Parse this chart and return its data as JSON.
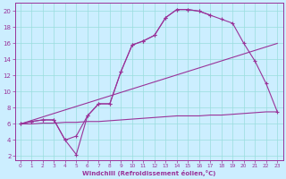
{
  "xlabel": "Windchill (Refroidissement éolien,°C)",
  "bg_color": "#cceeff",
  "line_color": "#993399",
  "series": [
    {
      "x": [
        0,
        1,
        2,
        3,
        4,
        5,
        6,
        7,
        8,
        9,
        10,
        11,
        12,
        13,
        14,
        15,
        16,
        17
      ],
      "y": [
        6,
        6.3,
        6.5,
        6.5,
        4.0,
        4.5,
        7.0,
        8.5,
        8.5,
        12.5,
        15.8,
        16.3,
        17.0,
        19.2,
        20.2,
        20.2,
        20.0,
        19.5
      ],
      "has_marker": true
    },
    {
      "x": [
        0,
        1,
        2,
        3,
        4,
        5,
        6,
        7,
        8,
        9,
        10,
        11,
        12,
        13,
        14,
        15,
        16,
        17,
        18,
        19,
        20,
        21,
        22,
        23
      ],
      "y": [
        6,
        6.3,
        6.5,
        6.5,
        4.0,
        2.2,
        7.0,
        8.5,
        8.5,
        12.5,
        15.8,
        16.3,
        17.0,
        19.2,
        20.2,
        20.2,
        20.0,
        19.5,
        19.0,
        18.5,
        16.0,
        13.8,
        11.0,
        7.5
      ],
      "has_marker": true
    },
    {
      "x": [
        0,
        23
      ],
      "y": [
        6,
        16
      ],
      "has_marker": false
    },
    {
      "x": [
        0,
        1,
        2,
        3,
        4,
        5,
        6,
        7,
        8,
        9,
        10,
        11,
        12,
        13,
        14,
        15,
        16,
        17,
        18,
        19,
        20,
        21,
        22,
        23
      ],
      "y": [
        6.0,
        6.0,
        6.1,
        6.1,
        6.2,
        6.2,
        6.3,
        6.3,
        6.4,
        6.5,
        6.6,
        6.7,
        6.8,
        6.9,
        7.0,
        7.0,
        7.0,
        7.1,
        7.1,
        7.2,
        7.3,
        7.4,
        7.5,
        7.5
      ],
      "has_marker": false
    }
  ],
  "xlim": [
    -0.5,
    23.5
  ],
  "ylim": [
    1.5,
    21
  ],
  "xticks": [
    0,
    1,
    2,
    3,
    4,
    5,
    6,
    7,
    8,
    9,
    10,
    11,
    12,
    13,
    14,
    15,
    16,
    17,
    18,
    19,
    20,
    21,
    22,
    23
  ],
  "yticks": [
    2,
    4,
    6,
    8,
    10,
    12,
    14,
    16,
    18,
    20
  ],
  "grid_color": "#99dddd",
  "tick_color": "#993399",
  "label_color": "#993399",
  "spine_color": "#993399"
}
